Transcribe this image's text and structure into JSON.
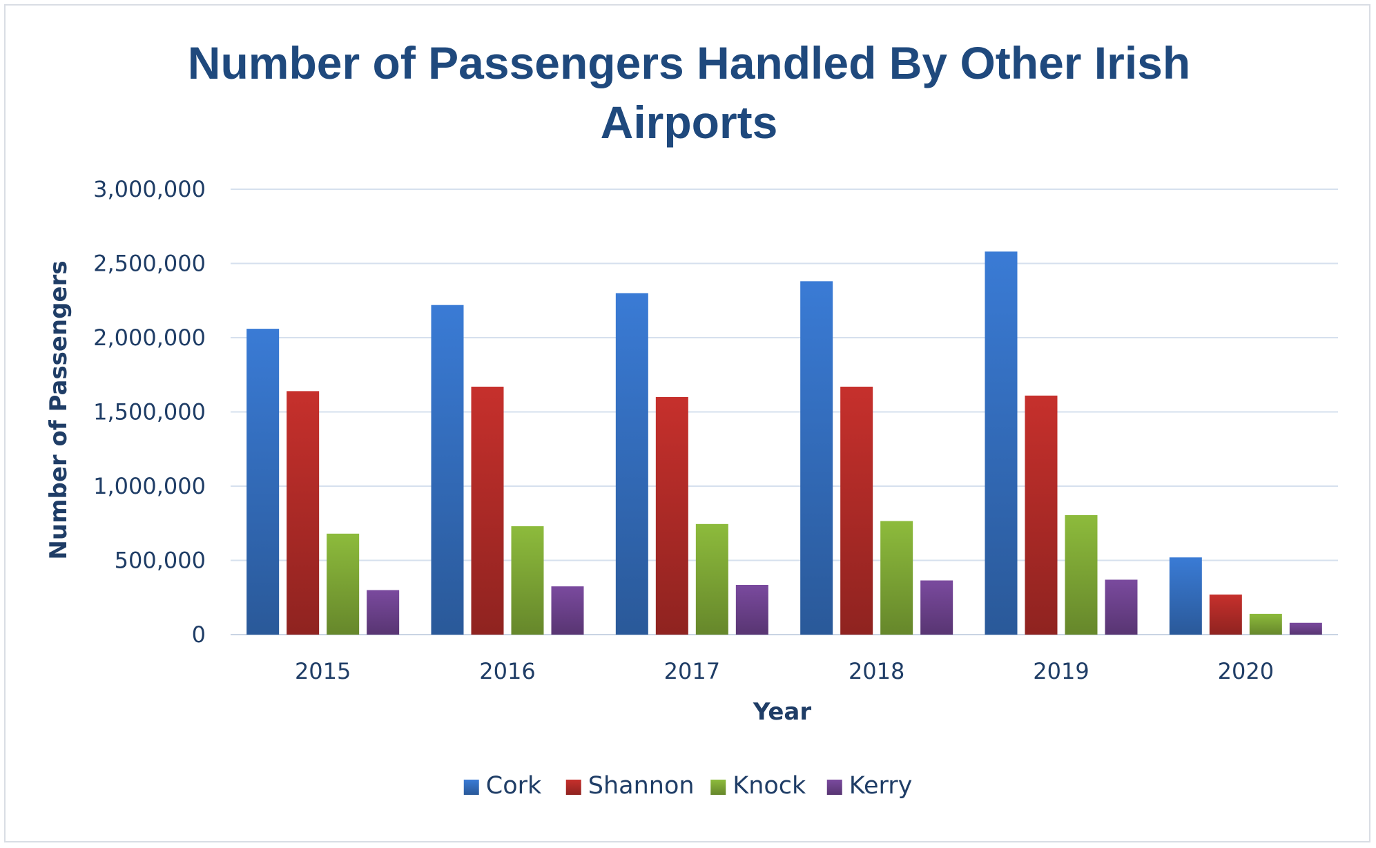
{
  "chart_data": {
    "type": "bar",
    "title": "Number of Passengers Handled By Other Irish Airports",
    "title_lines": [
      "Number of Passengers Handled By Other Irish",
      "Airports"
    ],
    "xlabel": "Year",
    "ylabel": "Number of Passengers",
    "categories": [
      "2015",
      "2016",
      "2017",
      "2018",
      "2019",
      "2020"
    ],
    "ylim": [
      0,
      3000000
    ],
    "yticks": [
      0,
      500000,
      1000000,
      1500000,
      2000000,
      2500000,
      3000000
    ],
    "ytick_labels": [
      "0",
      "500,000",
      "1,000,000",
      "1,500,000",
      "2,000,000",
      "2,500,000",
      "3,000,000"
    ],
    "grid": true,
    "legend_position": "bottom",
    "series": [
      {
        "name": "Cork",
        "color": "#3a7bd5",
        "values": [
          2060000,
          2220000,
          2300000,
          2380000,
          2580000,
          520000
        ]
      },
      {
        "name": "Shannon",
        "color": "#c6302c",
        "values": [
          1640000,
          1670000,
          1600000,
          1670000,
          1610000,
          270000
        ]
      },
      {
        "name": "Knock",
        "color": "#8dbb3c",
        "values": [
          680000,
          730000,
          745000,
          765000,
          805000,
          140000
        ]
      },
      {
        "name": "Kerry",
        "color": "#7a4a9e",
        "values": [
          300000,
          325000,
          335000,
          365000,
          370000,
          80000
        ]
      }
    ]
  }
}
